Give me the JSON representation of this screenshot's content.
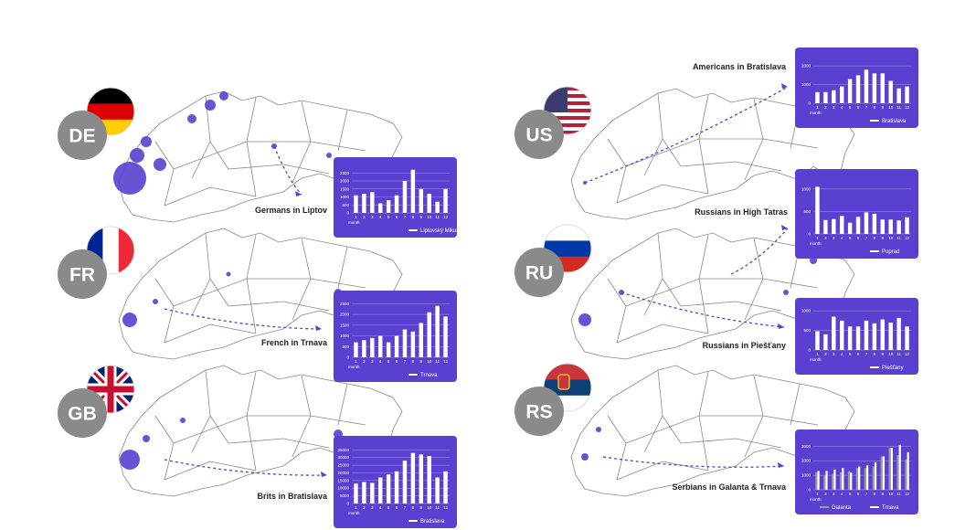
{
  "badges": [
    {
      "code": "DE"
    },
    {
      "code": "FR"
    },
    {
      "code": "GB"
    },
    {
      "code": "US"
    },
    {
      "code": "RU"
    },
    {
      "code": "RS"
    }
  ],
  "chart_data": [
    {
      "type": "bar",
      "title": "Germans in Liptov",
      "x_label": "month",
      "categories": [
        "1",
        "2",
        "3",
        "4",
        "5",
        "6",
        "7",
        "8",
        "9",
        "10",
        "11",
        "12"
      ],
      "series": [
        {
          "name": "Liptovský Mikuláš",
          "color": "#ffffff",
          "values": [
            1100,
            1200,
            1300,
            600,
            800,
            1100,
            2000,
            2700,
            1500,
            1200,
            700,
            1500
          ]
        }
      ],
      "ylim": [
        0,
        2800
      ],
      "yticks": [
        0,
        500,
        1000,
        1500,
        2000,
        2500
      ],
      "grid": true
    },
    {
      "type": "bar",
      "title": "French in Trnava",
      "x_label": "month",
      "categories": [
        "1",
        "2",
        "3",
        "4",
        "5",
        "6",
        "7",
        "8",
        "9",
        "10",
        "11",
        "12"
      ],
      "series": [
        {
          "name": "Trnava",
          "color": "#ffffff",
          "values": [
            700,
            800,
            900,
            1000,
            700,
            1000,
            1300,
            1200,
            1600,
            2100,
            2400,
            1900
          ]
        }
      ],
      "ylim": [
        0,
        2600
      ],
      "yticks": [
        0,
        500,
        1000,
        1500,
        2000,
        2500
      ],
      "grid": true
    },
    {
      "type": "bar",
      "title": "Brits in Bratislava",
      "x_label": "month",
      "categories": [
        "1",
        "2",
        "3",
        "4",
        "5",
        "6",
        "7",
        "8",
        "9",
        "10",
        "11",
        "12"
      ],
      "series": [
        {
          "name": "Bratislava",
          "color": "#ffffff",
          "values": [
            13000,
            14000,
            13500,
            17000,
            19000,
            21000,
            28000,
            33000,
            32000,
            31000,
            17000,
            21000
          ]
        }
      ],
      "ylim": [
        0,
        37000
      ],
      "yticks": [
        0,
        5000,
        10000,
        15000,
        20000,
        25000,
        30000,
        35000
      ],
      "grid": true
    },
    {
      "type": "bar",
      "title": "Americans in Bratislava",
      "x_label": "month",
      "categories": [
        "1",
        "2",
        "3",
        "4",
        "5",
        "6",
        "7",
        "8",
        "9",
        "10",
        "11",
        "12"
      ],
      "series": [
        {
          "name": "Bratislava",
          "color": "#ffffff",
          "values": [
            600,
            600,
            700,
            900,
            1300,
            1500,
            1800,
            1600,
            1600,
            1200,
            800,
            900
          ]
        }
      ],
      "ylim": [
        0,
        2400
      ],
      "yticks": [
        0,
        1000,
        2000
      ],
      "grid": true
    },
    {
      "type": "bar",
      "title": "Russians in High Tatras",
      "x_label": "month",
      "categories": [
        "1",
        "2",
        "3",
        "4",
        "5",
        "6",
        "7",
        "8",
        "9",
        "10",
        "11",
        "12"
      ],
      "series": [
        {
          "name": "Poprad",
          "color": "#ffffff",
          "values": [
            1050,
            310,
            330,
            400,
            250,
            380,
            480,
            450,
            320,
            320,
            300,
            370
          ]
        }
      ],
      "ylim": [
        0,
        1200
      ],
      "yticks": [
        0,
        500,
        1000
      ],
      "grid": true
    },
    {
      "type": "bar",
      "title": "Russians in Piešťany",
      "x_label": "month",
      "categories": [
        "1",
        "2",
        "3",
        "4",
        "5",
        "6",
        "7",
        "8",
        "9",
        "10",
        "11",
        "12"
      ],
      "series": [
        {
          "name": "Piešťany",
          "color": "#ffffff",
          "values": [
            480,
            400,
            850,
            750,
            600,
            600,
            750,
            680,
            780,
            700,
            820,
            600
          ]
        }
      ],
      "ylim": [
        0,
        1050
      ],
      "yticks": [
        0,
        500,
        1000
      ],
      "grid": true
    },
    {
      "type": "bar",
      "title": "Serbians in Galanta & Trnava",
      "x_label": "month",
      "categories": [
        "1",
        "2",
        "3",
        "4",
        "5",
        "6",
        "7",
        "8",
        "9",
        "10",
        "11",
        "12"
      ],
      "series": [
        {
          "name": "Galanta",
          "color": "#9a9a9a",
          "values": [
            1200,
            1000,
            1100,
            1200,
            1300,
            1500,
            1500,
            1600,
            2300,
            2900,
            2400,
            2100
          ]
        },
        {
          "name": "Trnava",
          "color": "#ffffff",
          "values": [
            1300,
            1300,
            1400,
            1500,
            1200,
            1600,
            1700,
            1900,
            2300,
            2900,
            3100,
            2600
          ]
        }
      ],
      "ylim": [
        0,
        3400
      ],
      "yticks": [
        0,
        1000,
        2000,
        3000
      ],
      "grid": true
    }
  ]
}
